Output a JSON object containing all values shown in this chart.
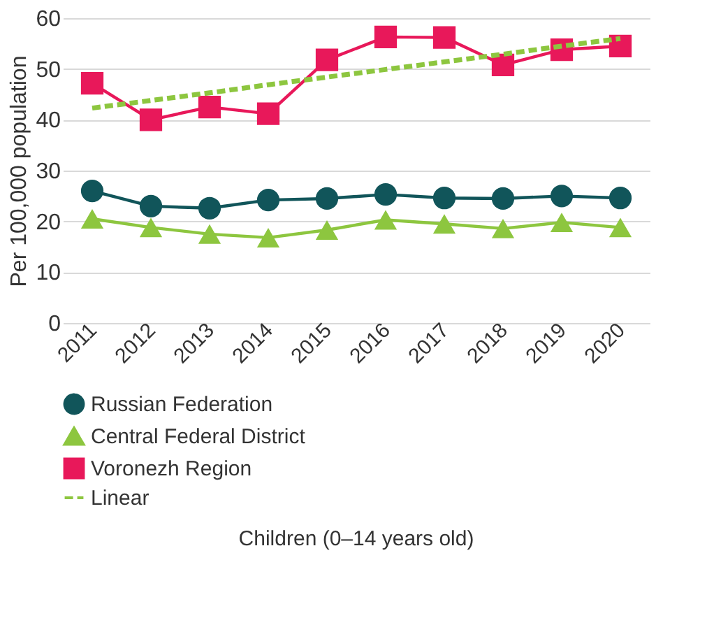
{
  "chart_data": {
    "type": "line",
    "ylabel": "Per 100,000 population",
    "annotations": [
      "Children (0–14 years old)"
    ],
    "categories": [
      "2011",
      "2012",
      "2013",
      "2014",
      "2015",
      "2016",
      "2017",
      "2018",
      "2019",
      "2020"
    ],
    "series": [
      {
        "name": "Russian Federation",
        "color": "#11555a",
        "marker": "circle",
        "values": [
          26,
          23,
          22.6,
          24.2,
          24.5,
          25.3,
          24.6,
          24.5,
          25,
          24.6
        ]
      },
      {
        "name": "Central Federal District",
        "color": "#8dc63f",
        "marker": "triangle",
        "values": [
          20.5,
          18.8,
          17.5,
          16.8,
          18.3,
          20.3,
          19.5,
          18.6,
          19.8,
          18.8
        ]
      },
      {
        "name": "Voronezh Region",
        "color": "#e8185a",
        "marker": "square",
        "values": [
          47.2,
          40,
          42.5,
          41.2,
          51.8,
          56.3,
          56.2,
          50.8,
          53.8,
          54.5
        ]
      },
      {
        "name": "Linear",
        "color": "#8dc63f",
        "marker": "none",
        "line_style": "dashed",
        "values": [
          42.3,
          43.8,
          45.3,
          46.9,
          48.4,
          49.9,
          51.4,
          52.9,
          54.5,
          56.0
        ]
      }
    ],
    "ylim": [
      0,
      60
    ],
    "yticks": [
      0,
      10,
      20,
      30,
      40,
      50,
      60
    ],
    "grid": "y",
    "legend": "bottom"
  }
}
